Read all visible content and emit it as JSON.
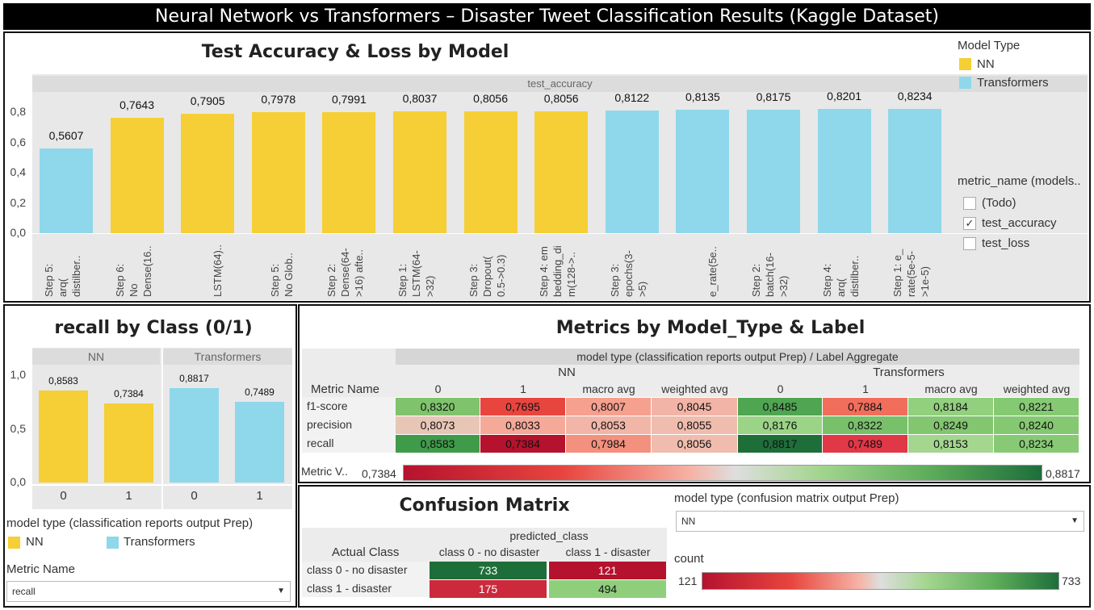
{
  "dashboard_title": "Neural Network vs Transformers – Disaster Tweet Classification Results (Kaggle Dataset)",
  "colors": {
    "nn": "#f5cf35",
    "transformers": "#8fd7ea"
  },
  "top_chart": {
    "title": "Test Accuracy & Loss by Model",
    "header": "test_accuracy",
    "yticks": [
      "0,8",
      "0,6",
      "0,4",
      "0,2",
      "0,0"
    ],
    "bars": [
      {
        "label": "0,5607",
        "cat1": "Step 5:",
        "cat2": "arq(",
        "cat3": "distilber..",
        "type": "transformers",
        "value": 0.5607
      },
      {
        "label": "0,7643",
        "cat1": "Step 6:",
        "cat2": "No",
        "cat3": "Dense(16..",
        "type": "nn",
        "value": 0.7643
      },
      {
        "label": "0,7905",
        "cat1": "",
        "cat2": "",
        "cat3": "LSTM(64)..",
        "type": "nn",
        "value": 0.7905
      },
      {
        "label": "0,7978",
        "cat1": "",
        "cat2": "Step 5:",
        "cat3": "No Glob..",
        "type": "nn",
        "value": 0.7978
      },
      {
        "label": "0,7991",
        "cat1": "Step 2:",
        "cat2": "Dense(64-",
        "cat3": ">16) afte..",
        "type": "nn",
        "value": 0.7991
      },
      {
        "label": "0,8037",
        "cat1": "Step 1:",
        "cat2": "LSTM(64-",
        "cat3": ">32)",
        "type": "nn",
        "value": 0.8037
      },
      {
        "label": "0,8056",
        "cat1": "Step 3:",
        "cat2": "Dropout(",
        "cat3": "0.5->0.3)",
        "type": "nn",
        "value": 0.8056
      },
      {
        "label": "0,8056",
        "cat1": "Step 4: em",
        "cat2": "bedding_di",
        "cat3": "m(128->..",
        "type": "nn",
        "value": 0.8056
      },
      {
        "label": "0,8122",
        "cat1": "Step 3:",
        "cat2": "epochs(3-",
        "cat3": ">5)",
        "type": "transformers",
        "value": 0.8122
      },
      {
        "label": "0,8135",
        "cat1": "",
        "cat2": "",
        "cat3": "e_rate(5e..",
        "type": "transformers",
        "value": 0.8135
      },
      {
        "label": "0,8175",
        "cat1": "Step 2:",
        "cat2": "batch(16-",
        "cat3": ">32)",
        "type": "transformers",
        "value": 0.8175
      },
      {
        "label": "0,8201",
        "cat1": "Step 4:",
        "cat2": "arq(",
        "cat3": "distilber..",
        "type": "transformers",
        "value": 0.8201
      },
      {
        "label": "0,8234",
        "cat1": "Step 1: e_",
        "cat2": "rate(5e-5-",
        "cat3": ">1e-5)",
        "type": "transformers",
        "value": 0.8234
      }
    ]
  },
  "legend": {
    "title": "Model Type",
    "nn": "NN",
    "transformers": "Transformers"
  },
  "filter": {
    "title": "metric_name (models..",
    "options": [
      {
        "label": "(Todo)",
        "checked": ""
      },
      {
        "label": "test_accuracy",
        "checked": "✓"
      },
      {
        "label": "test_loss",
        "checked": ""
      }
    ]
  },
  "recall_chart": {
    "title": "recall by Class (0/1)",
    "groups": [
      "NN",
      "Transformers"
    ],
    "yticks": [
      "1,0",
      "0,5",
      "0,0"
    ],
    "bars": [
      {
        "label": "0,8583",
        "cat": "0",
        "type": "nn",
        "value": 0.8583
      },
      {
        "label": "0,7384",
        "cat": "1",
        "type": "nn",
        "value": 0.7384
      },
      {
        "label": "0,8817",
        "cat": "0",
        "type": "transformers",
        "value": 0.8817
      },
      {
        "label": "0,7489",
        "cat": "1",
        "type": "transformers",
        "value": 0.7489
      }
    ],
    "legend_title": "model type (classification reports output Prep)",
    "legend_nn": "NN",
    "legend_tr": "Transformers",
    "metric_label": "Metric Name",
    "metric_value": "recall"
  },
  "metrics_table": {
    "title": "Metrics by Model_Type & Label",
    "header": "model type (classification reports output Prep)  /  Label Aggregate",
    "group_nn": "NN",
    "group_tr": "Transformers",
    "row_header": "Metric Name",
    "columns": [
      "0",
      "1",
      "macro avg",
      "weighted avg",
      "0",
      "1",
      "macro avg",
      "weighted avg"
    ],
    "rows": [
      {
        "name": "f1-score",
        "cells": [
          {
            "v": "0,8320",
            "c": "#7fc36c"
          },
          {
            "v": "0,7695",
            "c": "#e8453f"
          },
          {
            "v": "0,8007",
            "c": "#f6a08f"
          },
          {
            "v": "0,8045",
            "c": "#f2b4a6"
          },
          {
            "v": "0,8485",
            "c": "#4fa552"
          },
          {
            "v": "0,7884",
            "c": "#f16d5c"
          },
          {
            "v": "0,8184",
            "c": "#92cf7e"
          },
          {
            "v": "0,8221",
            "c": "#86c973"
          }
        ]
      },
      {
        "name": "precision",
        "cells": [
          {
            "v": "0,8073",
            "c": "#e8c6b6"
          },
          {
            "v": "0,8033",
            "c": "#f5a999"
          },
          {
            "v": "0,8053",
            "c": "#f2b6a8"
          },
          {
            "v": "0,8055",
            "c": "#efbcae"
          },
          {
            "v": "0,8176",
            "c": "#9bd486"
          },
          {
            "v": "0,8322",
            "c": "#79c06a"
          },
          {
            "v": "0,8249",
            "c": "#82c670"
          },
          {
            "v": "0,8240",
            "c": "#85c872"
          }
        ]
      },
      {
        "name": "recall",
        "cells": [
          {
            "v": "0,8583",
            "c": "#3f9a4a"
          },
          {
            "v": "0,7384",
            "c": "#b5122e"
          },
          {
            "v": "0,7984",
            "c": "#f4907e"
          },
          {
            "v": "0,8056",
            "c": "#efbcae"
          },
          {
            "v": "0,8817",
            "c": "#1e6e3a"
          },
          {
            "v": "0,7489",
            "c": "#e03847"
          },
          {
            "v": "0,8153",
            "c": "#a4d690"
          },
          {
            "v": "0,8234",
            "c": "#88c975"
          }
        ]
      }
    ],
    "scale_label": "Metric V..",
    "scale_min": "0,7384",
    "scale_max": "0,8817"
  },
  "confusion": {
    "title": "Confusion Matrix",
    "header": "predicted_class",
    "row_header": "Actual Class",
    "columns": [
      "class 0 - no disaster",
      "class 1 - disaster"
    ],
    "rows": [
      {
        "name": "class 0 - no disaster",
        "cells": [
          {
            "v": "733",
            "c": "#1e6e3a"
          },
          {
            "v": "121",
            "c": "#b5122e"
          }
        ]
      },
      {
        "name": "class 1 - disaster",
        "cells": [
          {
            "v": "175",
            "c": "#cc2a3c"
          },
          {
            "v": "494",
            "c": "#8fcf7c"
          }
        ]
      }
    ],
    "filter_label": "model type (confusion matrix output Prep)",
    "filter_value": "NN",
    "count_label": "count",
    "scale_min": "121",
    "scale_max": "733"
  }
}
